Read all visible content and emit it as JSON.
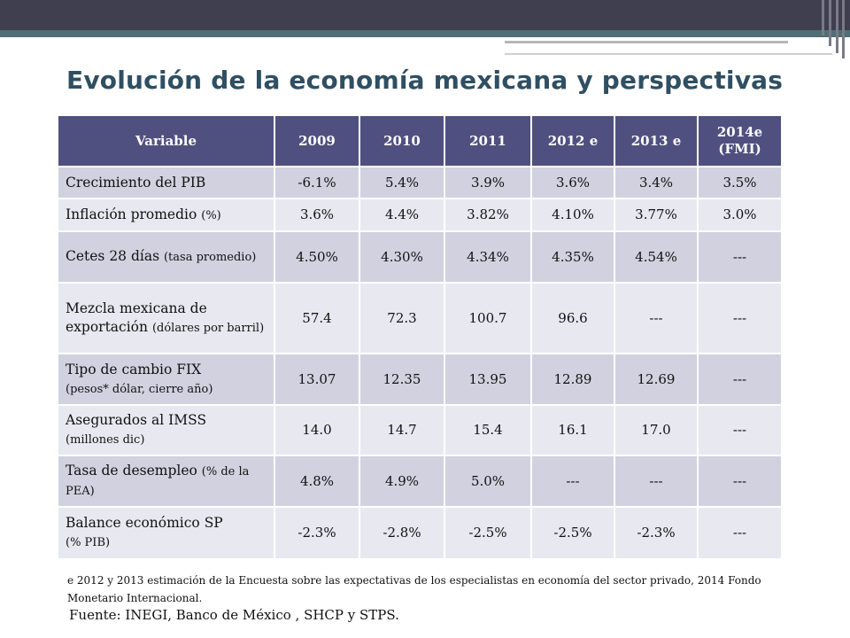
{
  "title": "Evolución de la economía mexicana y perspectivas",
  "table": {
    "headers": [
      "Variable",
      "2009",
      "2010",
      "2011",
      "2012 e",
      "2013 e",
      "2014e (FMI)"
    ],
    "rows": [
      {
        "label": "Crecimiento del PIB",
        "sub": "",
        "values": [
          "-6.1%",
          "5.4%",
          "3.9%",
          "3.6%",
          "3.4%",
          "3.5%"
        ]
      },
      {
        "label": "Inflación promedio",
        "sub": "(%)",
        "values": [
          "3.6%",
          "4.4%",
          "3.82%",
          "4.10%",
          "3.77%",
          "3.0%"
        ]
      },
      {
        "label": "Cetes 28 días",
        "sub": "(tasa promedio)",
        "values": [
          "4.50%",
          "4.30%",
          "4.34%",
          "4.35%",
          "4.54%",
          "---"
        ]
      },
      {
        "label": "Mezcla mexicana de exportación",
        "sub": "(dólares por barril)",
        "values": [
          "57.4",
          "72.3",
          "100.7",
          "96.6",
          "---",
          "---"
        ]
      },
      {
        "label": "Tipo de cambio FIX",
        "sub": "(pesos* dólar,  cierre año)",
        "values": [
          "13.07",
          "12.35",
          "13.95",
          "12.89",
          "12.69",
          "---"
        ]
      },
      {
        "label": "Asegurados al IMSS",
        "sub": "(millones dic)",
        "values": [
          "14.0",
          "14.7",
          "15.4",
          "16.1",
          "17.0",
          "---"
        ]
      },
      {
        "label": "Tasa de desempleo",
        "sub": "(% de la PEA)",
        "values": [
          "4.8%",
          "4.9%",
          "5.0%",
          "---",
          "---",
          "---"
        ]
      },
      {
        "label": "Balance económico SP",
        "sub": "(% PIB)",
        "values": [
          "-2.3%",
          "-2.8%",
          "-2.5%",
          "-2.5%",
          "-2.3%",
          "---"
        ]
      }
    ]
  },
  "footnote": "e  2012 y 2013 estimación de la Encuesta sobre las expectativas de los especialistas en economía del sector privado, 2014 Fondo Monetario Internacional.",
  "source": "Fuente: INEGI, Banco de México , SHCP y STPS.",
  "colors": {
    "header_bg": "#505080",
    "row_odd": "#d1d1e0",
    "row_even": "#e8e8f0",
    "title": "#2f4f62"
  }
}
